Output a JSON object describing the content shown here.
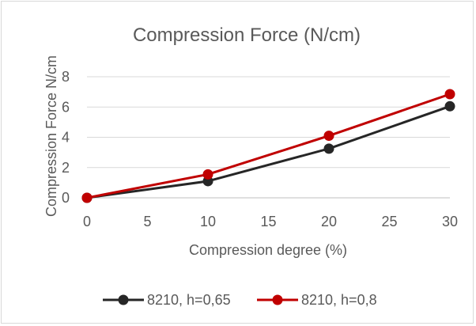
{
  "chart_data": {
    "type": "line",
    "title": "Compression Force (N/cm)",
    "xlabel": "Compression degree (%)",
    "ylabel": "Compression Force N/cm",
    "xlim": [
      0,
      30
    ],
    "ylim": [
      0,
      8
    ],
    "x_ticks": [
      "0",
      "5",
      "10",
      "15",
      "20",
      "25",
      "30"
    ],
    "y_ticks": [
      "0",
      "2",
      "4",
      "6",
      "8"
    ],
    "grid": "horizontal",
    "legend": "bottom",
    "x": [
      0,
      10,
      20,
      30
    ],
    "series": [
      {
        "name": "8210, h=0,65",
        "color": "#262626",
        "values": [
          0,
          1.1,
          3.25,
          6.05
        ]
      },
      {
        "name": "8210, h=0,8",
        "color": "#c00000",
        "values": [
          0,
          1.55,
          4.1,
          6.85
        ]
      }
    ]
  }
}
